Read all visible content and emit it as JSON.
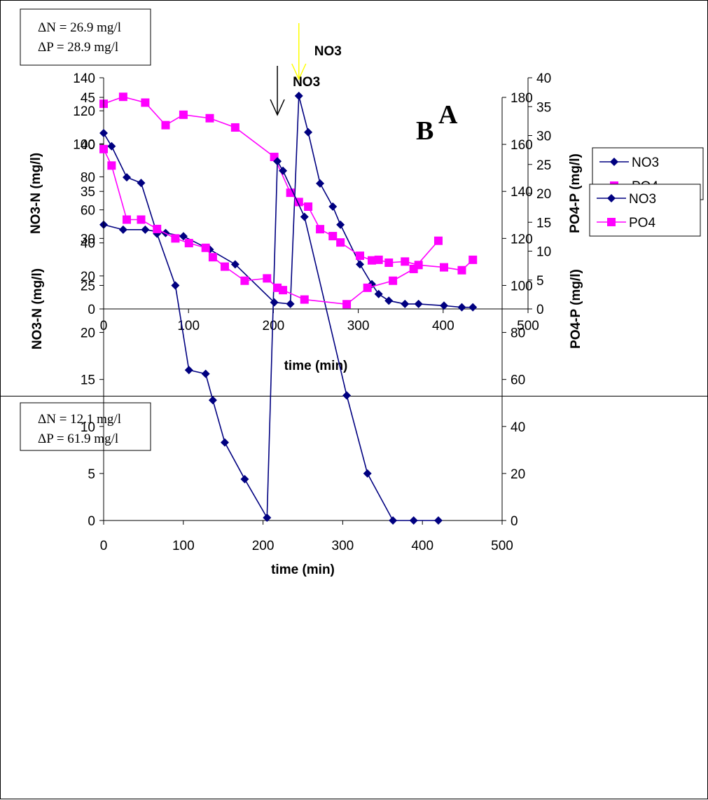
{
  "chart_data": [
    {
      "panel_label": "A",
      "type": "line",
      "stats": [
        "ΔN = 26.9 mg/l",
        "ΔP = 28.9 mg/l"
      ],
      "annotation": {
        "text": "NO3",
        "x": 230,
        "color": "#ffff00"
      },
      "xlabel": "time (min)",
      "ylabel": "NO3-N (mg/l)",
      "y2label": "PO4-P (mg/l)",
      "xlim": [
        0,
        500
      ],
      "xticks": [
        0,
        100,
        200,
        300,
        400,
        500
      ],
      "ylim": [
        0,
        140
      ],
      "yticks": [
        0,
        20,
        40,
        60,
        80,
        100,
        120,
        140
      ],
      "y2lim": [
        0,
        40
      ],
      "y2ticks": [
        0,
        5,
        10,
        15,
        20,
        25,
        30,
        35,
        40
      ],
      "legend_position": "right",
      "series": [
        {
          "name": "NO3",
          "axis": "left",
          "marker": "diamond",
          "color": "#000080",
          "x": [
            0,
            23,
            49,
            73,
            94,
            125,
            155,
            201,
            220,
            230,
            241,
            255,
            270,
            279,
            302,
            316,
            324,
            336,
            355,
            371,
            401,
            422,
            435
          ],
          "y": [
            51,
            48,
            48,
            46,
            44,
            36,
            27,
            4,
            3,
            129,
            107,
            76,
            62,
            51,
            27,
            15,
            9,
            5,
            3,
            3,
            2,
            1,
            1
          ]
        },
        {
          "name": "PO4",
          "axis": "right",
          "marker": "square",
          "color": "#ff00ff",
          "x": [
            0,
            23,
            49,
            73,
            94,
            125,
            155,
            201,
            220,
            230,
            241,
            255,
            270,
            279,
            302,
            316,
            324,
            336,
            355,
            371,
            401,
            422,
            435
          ],
          "y": [
            35.5,
            36.7,
            35.7,
            31.8,
            33.6,
            33.0,
            31.4,
            26.3,
            20.1,
            18.5,
            17.7,
            13.8,
            12.6,
            11.5,
            9.2,
            8.4,
            8.5,
            8.0,
            8.2,
            7.6,
            7.2,
            6.7,
            8.5
          ]
        }
      ]
    },
    {
      "panel_label": "B",
      "type": "line",
      "stats": [
        "ΔN = 12.1 mg/l",
        "ΔP = 61.9 mg/l"
      ],
      "annotation": {
        "text": "NO3",
        "x": 218,
        "color": "#000000"
      },
      "xlabel": "time (min)",
      "ylabel": "NO3-N (mg/l)",
      "y2label": "PO4-P (mg/l)",
      "xlim": [
        0,
        500
      ],
      "xticks": [
        0,
        100,
        200,
        300,
        400,
        500
      ],
      "ylim": [
        0,
        45
      ],
      "yticks": [
        0,
        5,
        10,
        15,
        20,
        25,
        30,
        35,
        40,
        45
      ],
      "y2lim": [
        0,
        180
      ],
      "y2ticks": [
        0,
        20,
        40,
        60,
        80,
        100,
        120,
        140,
        160,
        180
      ],
      "legend_position": "right",
      "series": [
        {
          "name": "NO3",
          "axis": "left",
          "marker": "diamond",
          "color": "#000080",
          "x": [
            0,
            10,
            29,
            47,
            67,
            90,
            107,
            128,
            137,
            152,
            177,
            205,
            218,
            225,
            252,
            305,
            331,
            363,
            389,
            420
          ],
          "y": [
            41.2,
            39.8,
            36.5,
            35.9,
            30.5,
            25.0,
            16.0,
            15.6,
            12.8,
            8.3,
            4.4,
            0.3,
            38.2,
            37.2,
            32.3,
            13.3,
            5.0,
            0,
            0,
            0
          ]
        },
        {
          "name": "PO4",
          "axis": "right",
          "marker": "square",
          "color": "#ff00ff",
          "x": [
            0,
            10,
            29,
            47,
            67,
            90,
            107,
            128,
            137,
            152,
            177,
            205,
            218,
            225,
            252,
            305,
            331,
            363,
            389,
            420
          ],
          "y": [
            158,
            151,
            128,
            128,
            124,
            120,
            118,
            116,
            112,
            108,
            102,
            103,
            99,
            98,
            94,
            92,
            99,
            102,
            107,
            119
          ]
        }
      ]
    }
  ]
}
